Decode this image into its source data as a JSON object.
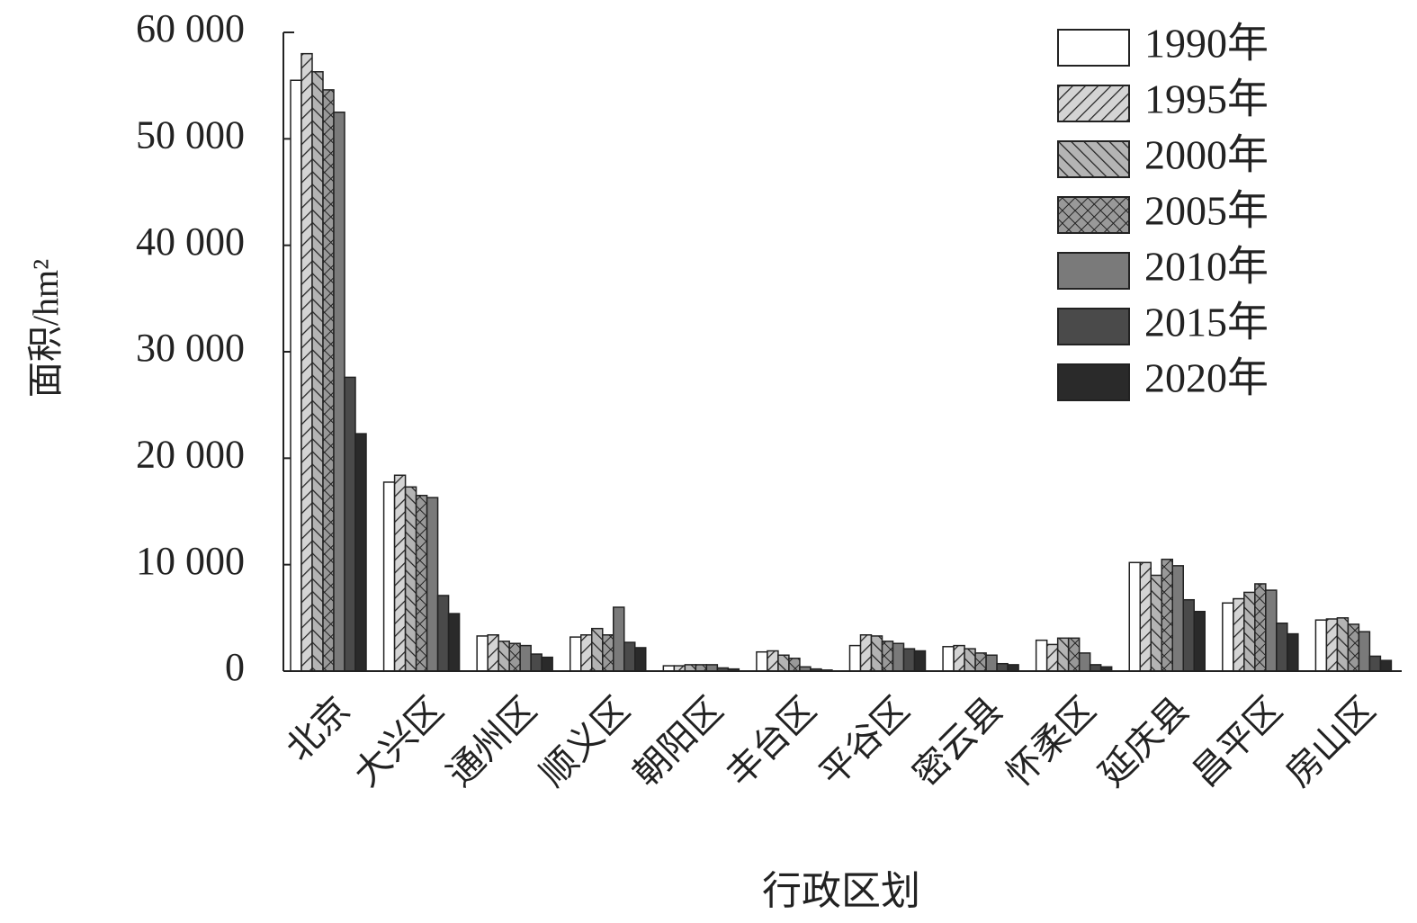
{
  "chart_data": {
    "type": "bar",
    "y_label": "面积/hm²",
    "x_label": "行政区划",
    "categories": [
      "北京",
      "大兴区",
      "通州区",
      "顺义区",
      "朝阳区",
      "丰台区",
      "平谷区",
      "密云县",
      "怀柔区",
      "延庆县",
      "昌平区",
      "房山区"
    ],
    "series": [
      {
        "name": "1990年",
        "color": "#ffffff",
        "values": [
          55500,
          17750,
          3300,
          3200,
          500,
          1800,
          2400,
          2300,
          2900,
          10200,
          6400,
          4800
        ]
      },
      {
        "name": "1995年",
        "color": "#d4d4d4",
        "hatch": "forward",
        "values": [
          58000,
          18400,
          3400,
          3400,
          500,
          1900,
          3400,
          2400,
          2500,
          10200,
          6800,
          4900
        ]
      },
      {
        "name": "2000年",
        "color": "#b4b4b4",
        "hatch": "back",
        "values": [
          56300,
          17300,
          2800,
          4000,
          600,
          1500,
          3300,
          2100,
          3100,
          9000,
          7400,
          5000
        ]
      },
      {
        "name": "2005年",
        "color": "#999999",
        "hatch": "cross",
        "values": [
          54600,
          16500,
          2600,
          3400,
          600,
          1200,
          2800,
          1700,
          3100,
          10500,
          8200,
          4400
        ]
      },
      {
        "name": "2010年",
        "color": "#7a7a7a",
        "values": [
          52500,
          16300,
          2400,
          6000,
          600,
          400,
          2600,
          1500,
          1700,
          9900,
          7600,
          3700
        ]
      },
      {
        "name": "2015年",
        "color": "#4a4a4a",
        "values": [
          27600,
          7100,
          1600,
          2700,
          300,
          200,
          2100,
          700,
          600,
          6700,
          4500,
          1400
        ]
      },
      {
        "name": "2020年",
        "color": "#2a2a2a",
        "values": [
          22300,
          5400,
          1300,
          2200,
          200,
          100,
          1900,
          600,
          400,
          5600,
          3500,
          1000
        ]
      }
    ],
    "ylim": [
      0,
      60000
    ],
    "yticks": [
      0,
      {
        "value": 10000,
        "label": "10 000"
      },
      {
        "value": 20000,
        "label": "20 000"
      },
      {
        "value": 30000,
        "label": "30 000"
      },
      {
        "value": 40000,
        "label": "40 000"
      },
      {
        "value": 50000,
        "label": "50 000"
      },
      {
        "value": 60000,
        "label": "60 000"
      }
    ],
    "legend": "upper right",
    "grid": false
  }
}
